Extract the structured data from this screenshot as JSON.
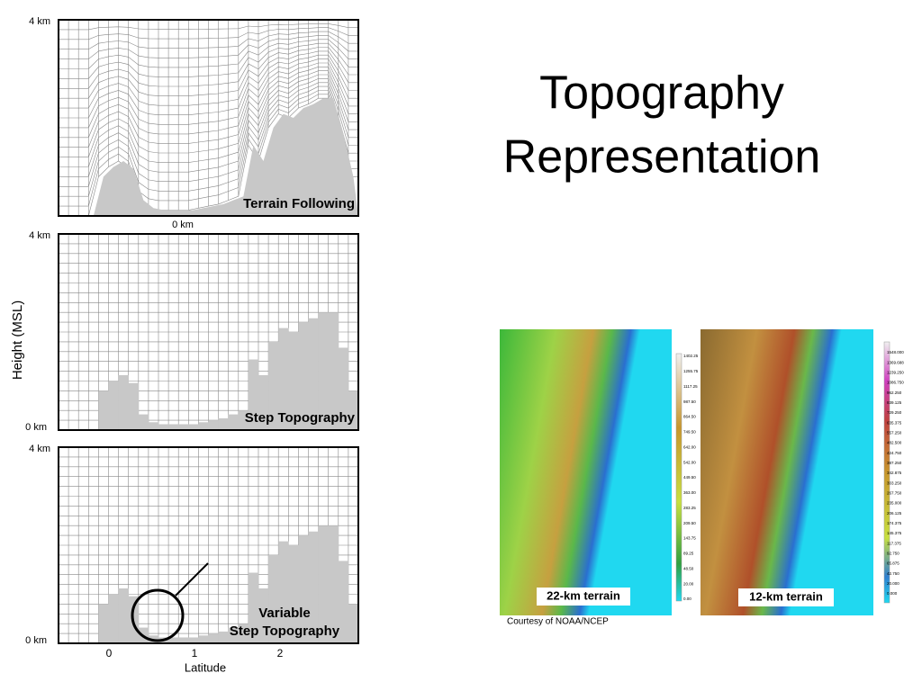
{
  "slide": {
    "title": [
      "Topography",
      "Representation"
    ],
    "y_axis_label": "Height  (MSL)",
    "x_axis_label": "Latitude",
    "x_ticks": [
      "0",
      "1",
      "2"
    ],
    "panels": [
      {
        "top_label": "4 km",
        "bottom_label": "0 km",
        "label": [
          "Terrain Following"
        ]
      },
      {
        "top_label": "4 km",
        "bottom_label": "0 km",
        "label": [
          "Step Topography"
        ]
      },
      {
        "top_label": "4 km",
        "bottom_label": "0 km",
        "label": [
          "Variable",
          "Step Topography"
        ]
      }
    ],
    "maps": [
      {
        "caption": "22-km terrain",
        "legend": [
          "1402.25",
          "1255.75",
          "1117.25",
          "987.50",
          "864.50",
          "749.50",
          "642.00",
          "542.00",
          "449.50",
          "363.00",
          "283.25",
          "209.50",
          "143.75",
          "89.25",
          "48.50",
          "20.00",
          "0.00"
        ]
      },
      {
        "caption": "12-km terrain",
        "legend": [
          "1548.000",
          "1369.688",
          "1239.250",
          "1086.750",
          "962.250",
          "839.125",
          "729.250",
          "635.375",
          "557.250",
          "482.500",
          "424.750",
          "387.250",
          "342.875",
          "303.250",
          "267.750",
          "235.000",
          "206.125",
          "174.375",
          "145.375",
          "117.375",
          "92.750",
          "65.875",
          "42.750",
          "20.000",
          "0.000"
        ]
      }
    ],
    "credit": "Courtesy of NOAA/NCEP"
  }
}
